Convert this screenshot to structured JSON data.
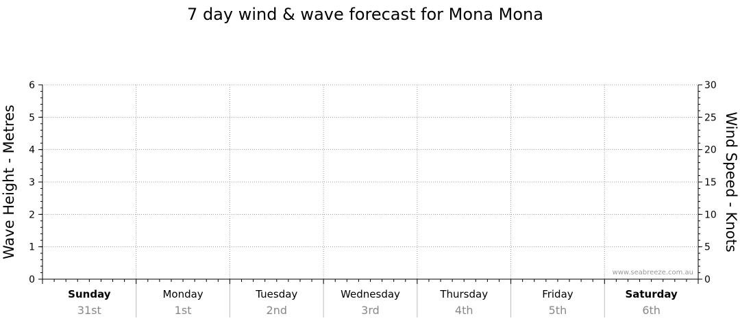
{
  "title": "7 day wind & wave forecast for Mona Mona",
  "watermark": "www.seabreeze.com.au",
  "chart_data": {
    "type": "line",
    "title": "7 day wind & wave forecast for Mona Mona",
    "left_axis": {
      "label": "Wave Height - Metres",
      "ylim": [
        0,
        6
      ],
      "ticks": [
        0,
        1,
        2,
        3,
        4,
        5,
        6
      ]
    },
    "right_axis": {
      "label": "Wind Speed - Knots",
      "ylim": [
        0,
        30
      ],
      "ticks": [
        0,
        5,
        10,
        15,
        20,
        25,
        30
      ]
    },
    "grid": true,
    "days": [
      {
        "name": "Sunday",
        "date": "31st",
        "bold": true
      },
      {
        "name": "Monday",
        "date": "1st",
        "bold": false
      },
      {
        "name": "Tuesday",
        "date": "2nd",
        "bold": false
      },
      {
        "name": "Wednesday",
        "date": "3rd",
        "bold": false
      },
      {
        "name": "Thursday",
        "date": "4th",
        "bold": false
      },
      {
        "name": "Friday",
        "date": "5th",
        "bold": false
      },
      {
        "name": "Saturday",
        "date": "6th",
        "bold": true
      }
    ],
    "series": []
  }
}
